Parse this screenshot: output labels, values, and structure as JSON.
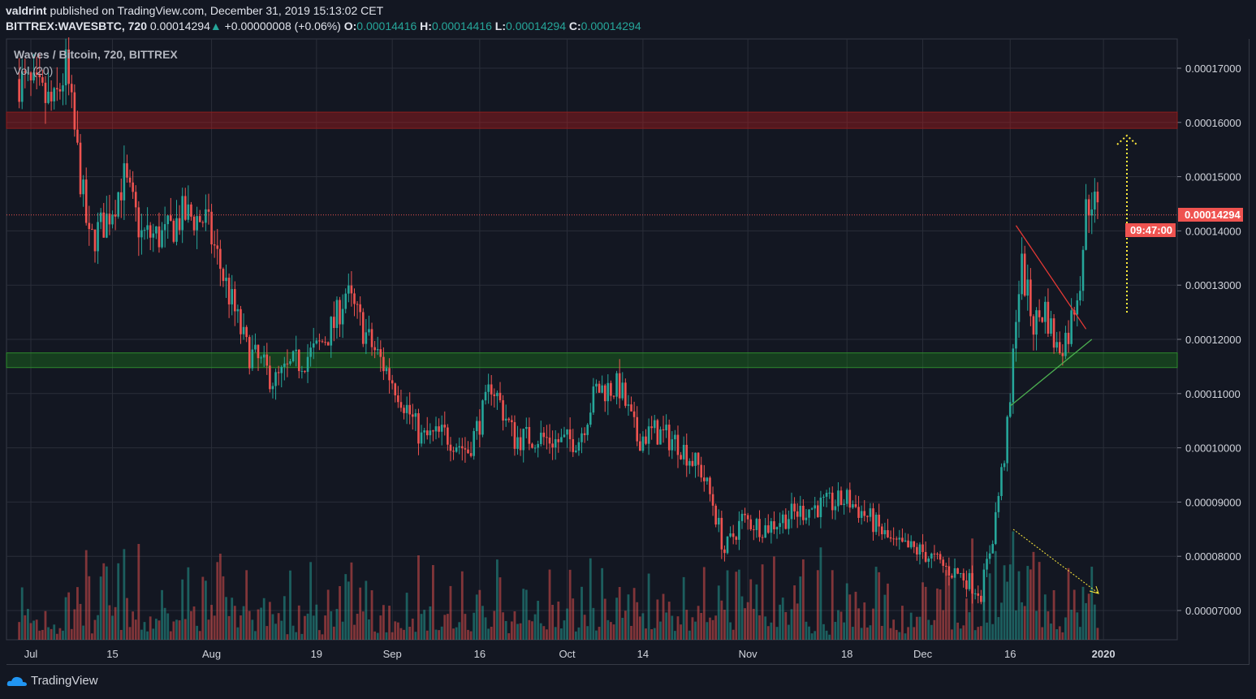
{
  "header": {
    "publisher": "valdrint",
    "published_text": "published on TradingView.com, December 31, 2019 15:13:02 CET",
    "symbol": "BITTREX:WAVESBTC, 720",
    "last": "0.00014294",
    "change_icon": "triangle-up",
    "change": "+0.00000008 (+0.06%)",
    "o_label": "O:",
    "o": "0.00014416",
    "h_label": "H:",
    "h": "0.00014416",
    "l_label": "L:",
    "l": "0.00014294",
    "c_label": "C:",
    "c": "0.00014294"
  },
  "legend": {
    "title": "Waves / Bitcoin, 720, BITTREX",
    "volume": "Vol (20)"
  },
  "price_label": "0.00014294",
  "countdown": "09:47:00",
  "footer": {
    "brand": "TradingView"
  },
  "colors": {
    "up": "#26a69a",
    "down": "#ef5350",
    "bg": "#131722",
    "grid": "#2a2e39",
    "resistance": "#b71c1c",
    "support": "#1b7a1b",
    "annotation": "#ffeb3b"
  },
  "chart_data": {
    "type": "candlestick",
    "title": "Waves / Bitcoin, 720, BITTREX",
    "ylim": [
      6.45e-05,
      0.0001755
    ],
    "y_ticks": [
      "0.00017000",
      "0.00016000",
      "0.00015000",
      "0.00014000",
      "0.00013000",
      "0.00012000",
      "0.00011000",
      "0.00010000",
      "0.00009000",
      "0.00008000",
      "0.00007000"
    ],
    "x_ticks": [
      {
        "date": "2019-07-01",
        "label": "Jul"
      },
      {
        "date": "2019-07-15",
        "label": "15"
      },
      {
        "date": "2019-08-01",
        "label": "Aug"
      },
      {
        "date": "2019-08-19",
        "label": "19"
      },
      {
        "date": "2019-09-01",
        "label": "Sep"
      },
      {
        "date": "2019-09-16",
        "label": "16"
      },
      {
        "date": "2019-10-01",
        "label": "Oct"
      },
      {
        "date": "2019-10-14",
        "label": "14"
      },
      {
        "date": "2019-11-01",
        "label": "Nov"
      },
      {
        "date": "2019-11-18",
        "label": "18"
      },
      {
        "date": "2019-12-01",
        "label": "Dec"
      },
      {
        "date": "2019-12-16",
        "label": "16"
      },
      {
        "date": "2020-01-01",
        "label": "2020"
      }
    ],
    "grid": true,
    "close_path": [
      [
        "2019-06-29",
        0.000168
      ],
      [
        "2019-07-01",
        0.0001661
      ],
      [
        "2019-07-05",
        0.000163
      ],
      [
        "2019-07-07",
        0.00017
      ],
      [
        "2019-07-09",
        0.000154
      ],
      [
        "2019-07-11",
        0.0001377
      ],
      [
        "2019-07-14",
        0.0001422
      ],
      [
        "2019-07-17",
        0.0001496
      ],
      [
        "2019-07-20",
        0.0001392
      ],
      [
        "2019-07-24",
        0.000139
      ],
      [
        "2019-07-27",
        0.0001429
      ],
      [
        "2019-07-31",
        0.000142
      ],
      [
        "2019-08-03",
        0.0001317
      ],
      [
        "2019-08-07",
        0.0001182
      ],
      [
        "2019-08-12",
        0.0001122
      ],
      [
        "2019-08-15",
        0.0001152
      ],
      [
        "2019-08-19",
        0.000118
      ],
      [
        "2019-08-22",
        0.0001227
      ],
      [
        "2019-08-24",
        0.0001287
      ],
      [
        "2019-08-28",
        0.0001197
      ],
      [
        "2019-09-02",
        0.0001107
      ],
      [
        "2019-09-06",
        0.0001017
      ],
      [
        "2019-09-10",
        0.0001025
      ],
      [
        "2019-09-14",
        9.95e-05
      ],
      [
        "2019-09-17",
        0.0001077
      ],
      [
        "2019-09-18",
        0.000112
      ],
      [
        "2019-09-22",
        0.0001017
      ],
      [
        "2019-09-26",
        0.000102
      ],
      [
        "2019-09-30",
        0.000101
      ],
      [
        "2019-10-03",
        0.0001017
      ],
      [
        "2019-10-06",
        0.0001107
      ],
      [
        "2019-10-10",
        0.0001112
      ],
      [
        "2019-10-13",
        0.0001017
      ],
      [
        "2019-10-16",
        0.000103
      ],
      [
        "2019-10-20",
        0.000101
      ],
      [
        "2019-10-24",
        9.57e-05
      ],
      [
        "2019-10-26",
        8.98e-05
      ],
      [
        "2019-10-28",
        8.08e-05
      ],
      [
        "2019-10-31",
        8.68e-05
      ],
      [
        "2019-11-04",
        8.53e-05
      ],
      [
        "2019-11-08",
        8.75e-05
      ],
      [
        "2019-11-12",
        8.9e-05
      ],
      [
        "2019-11-16",
        8.98e-05
      ],
      [
        "2019-11-18",
        9.05e-05
      ],
      [
        "2019-11-22",
        8.68e-05
      ],
      [
        "2019-11-26",
        8.2e-05
      ],
      [
        "2019-12-01",
        8.08e-05
      ],
      [
        "2019-12-05",
        7.78e-05
      ],
      [
        "2019-12-08",
        7.63e-05
      ],
      [
        "2019-12-11",
        7.33e-05
      ],
      [
        "2019-12-13",
        8.38e-05
      ],
      [
        "2019-12-15",
        9.88e-05
      ],
      [
        "2019-12-16",
        0.0001077
      ],
      [
        "2019-12-17",
        0.0001257
      ],
      [
        "2019-12-18",
        0.0001332
      ],
      [
        "2019-12-20",
        0.0001227
      ],
      [
        "2019-12-22",
        0.0001257
      ],
      [
        "2019-12-24",
        0.0001182
      ],
      [
        "2019-12-26",
        0.0001212
      ],
      [
        "2019-12-28",
        0.0001317
      ],
      [
        "2019-12-29",
        0.0001437
      ],
      [
        "2019-12-30",
        0.0001466
      ],
      [
        "2019-12-31",
        0.00014294
      ]
    ],
    "zones": [
      {
        "type": "resistance",
        "from": 0.0001589,
        "to": 0.0001619
      },
      {
        "type": "support",
        "from": 0.0001148,
        "to": 0.0001175
      }
    ],
    "trendlines": [
      {
        "color": "red",
        "start": [
          "2019-12-17",
          0.000141
        ],
        "end": [
          "2019-12-29",
          0.0001219
        ]
      },
      {
        "color": "green",
        "start": [
          "2019-12-16",
          0.0001077
        ],
        "end": [
          "2019-12-30",
          0.00012
        ]
      }
    ],
    "last_price": 0.00014294
  }
}
